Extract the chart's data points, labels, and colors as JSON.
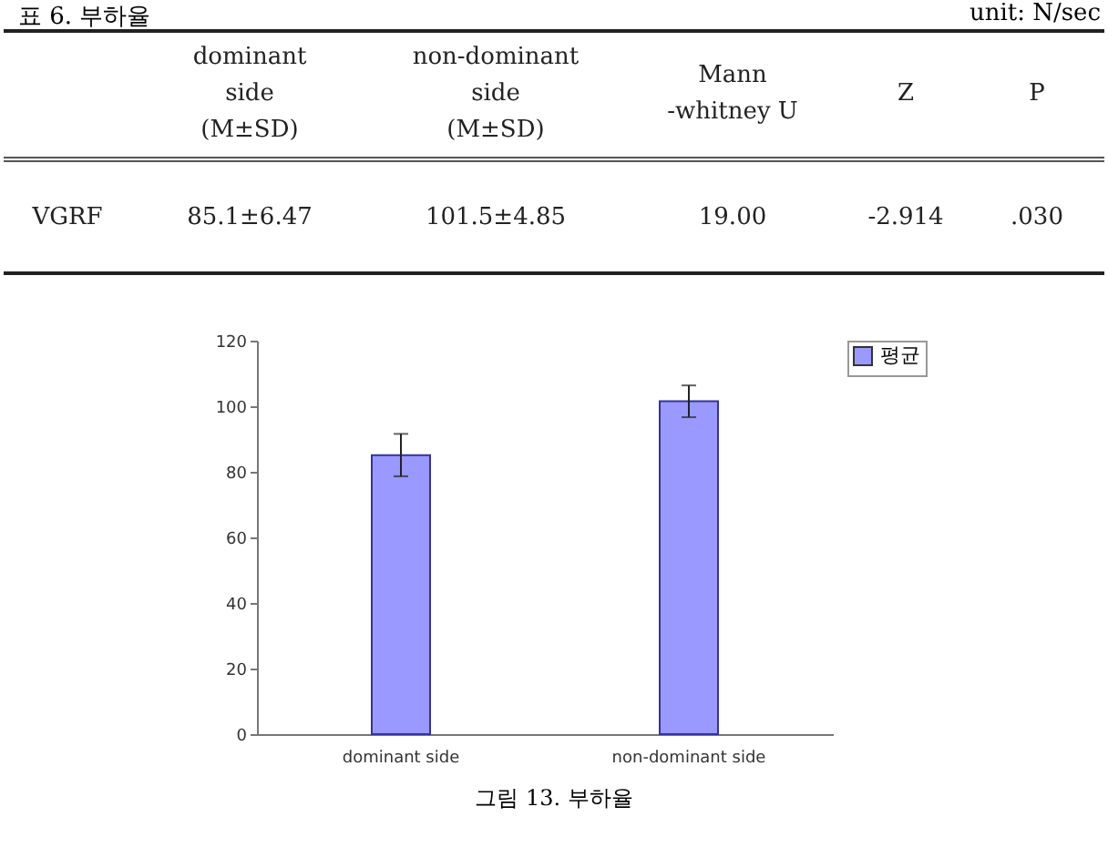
{
  "chart_data": {
    "type": "bar",
    "categories": [
      "dominant side",
      "non-dominant side"
    ],
    "series": [
      {
        "name": "평균",
        "color": "#9999ff",
        "values": [
          85.1,
          101.5
        ],
        "errors": [
          6.47,
          4.85
        ]
      }
    ],
    "ylim": [
      0,
      120
    ],
    "yticks": [
      0,
      20,
      40,
      60,
      80,
      100,
      120
    ],
    "grid": false,
    "legend": "right",
    "annotations": [
      "표 6. 부하율",
      "unit: N/sec",
      "dominant\nside\n(M±SD)",
      "non-dominant\nside\n(M±SD)",
      "Mann\n-whitney U",
      "Z",
      "P",
      "VGRF",
      "85.1±6.47",
      "101.5±4.85",
      "19.00",
      "-2.914",
      ".030",
      "그림 13. 부하율"
    ]
  }
}
